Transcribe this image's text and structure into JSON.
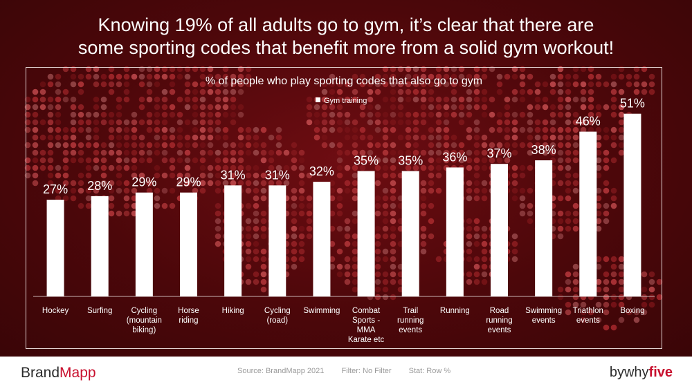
{
  "headline": {
    "line1": "Knowing 19% of all adults go to gym, it’s clear that there are",
    "line2": "some sporting codes that benefit more from a solid gym workout!"
  },
  "chart_data": {
    "type": "bar",
    "title": "% of people who play sporting codes that also go to gym",
    "legend": {
      "position": "top",
      "entries": [
        "Gym training"
      ]
    },
    "categories": [
      [
        "Hockey"
      ],
      [
        "Surfing"
      ],
      [
        "Cycling",
        "(mountain",
        "biking)"
      ],
      [
        "Horse",
        "riding"
      ],
      [
        "Hiking"
      ],
      [
        "Cycling",
        "(road)"
      ],
      [
        "Swimming"
      ],
      [
        "Combat",
        "Sports -",
        "MMA",
        "Karate etc"
      ],
      [
        "Trail",
        "running",
        "events"
      ],
      [
        "Running"
      ],
      [
        "Road",
        "running",
        "events"
      ],
      [
        "Swimming",
        "events"
      ],
      [
        "Triathlon",
        "events"
      ],
      [
        "Boxing"
      ]
    ],
    "series": [
      {
        "name": "Gym training",
        "values": [
          27,
          28,
          29,
          29,
          31,
          31,
          32,
          35,
          35,
          36,
          37,
          38,
          46,
          51
        ]
      }
    ],
    "data_labels": [
      "27%",
      "28%",
      "29%",
      "29%",
      "31%",
      "31%",
      "32%",
      "35%",
      "35%",
      "36%",
      "37%",
      "38%",
      "46%",
      "51%"
    ],
    "ylim": [
      0,
      60
    ],
    "grid": false,
    "colors": {
      "bar": "#ffffff",
      "text": "#ffffff"
    }
  },
  "footer": {
    "brand_prefix": "Brand",
    "brand_suffix": "Mapp",
    "source": "Source: BrandMapp 2021",
    "filter": "Filter: No Filter",
    "stat": "Stat: Row %",
    "by_prefix": "bywhy",
    "by_suffix": "five"
  },
  "colors": {
    "background": "#4c070a",
    "dot_palette": [
      "#7a1418",
      "#8f1e22",
      "#a5282c",
      "#b3363a",
      "#c04a4d",
      "#9b4a4c"
    ],
    "brand_accent": "#c8102e"
  }
}
